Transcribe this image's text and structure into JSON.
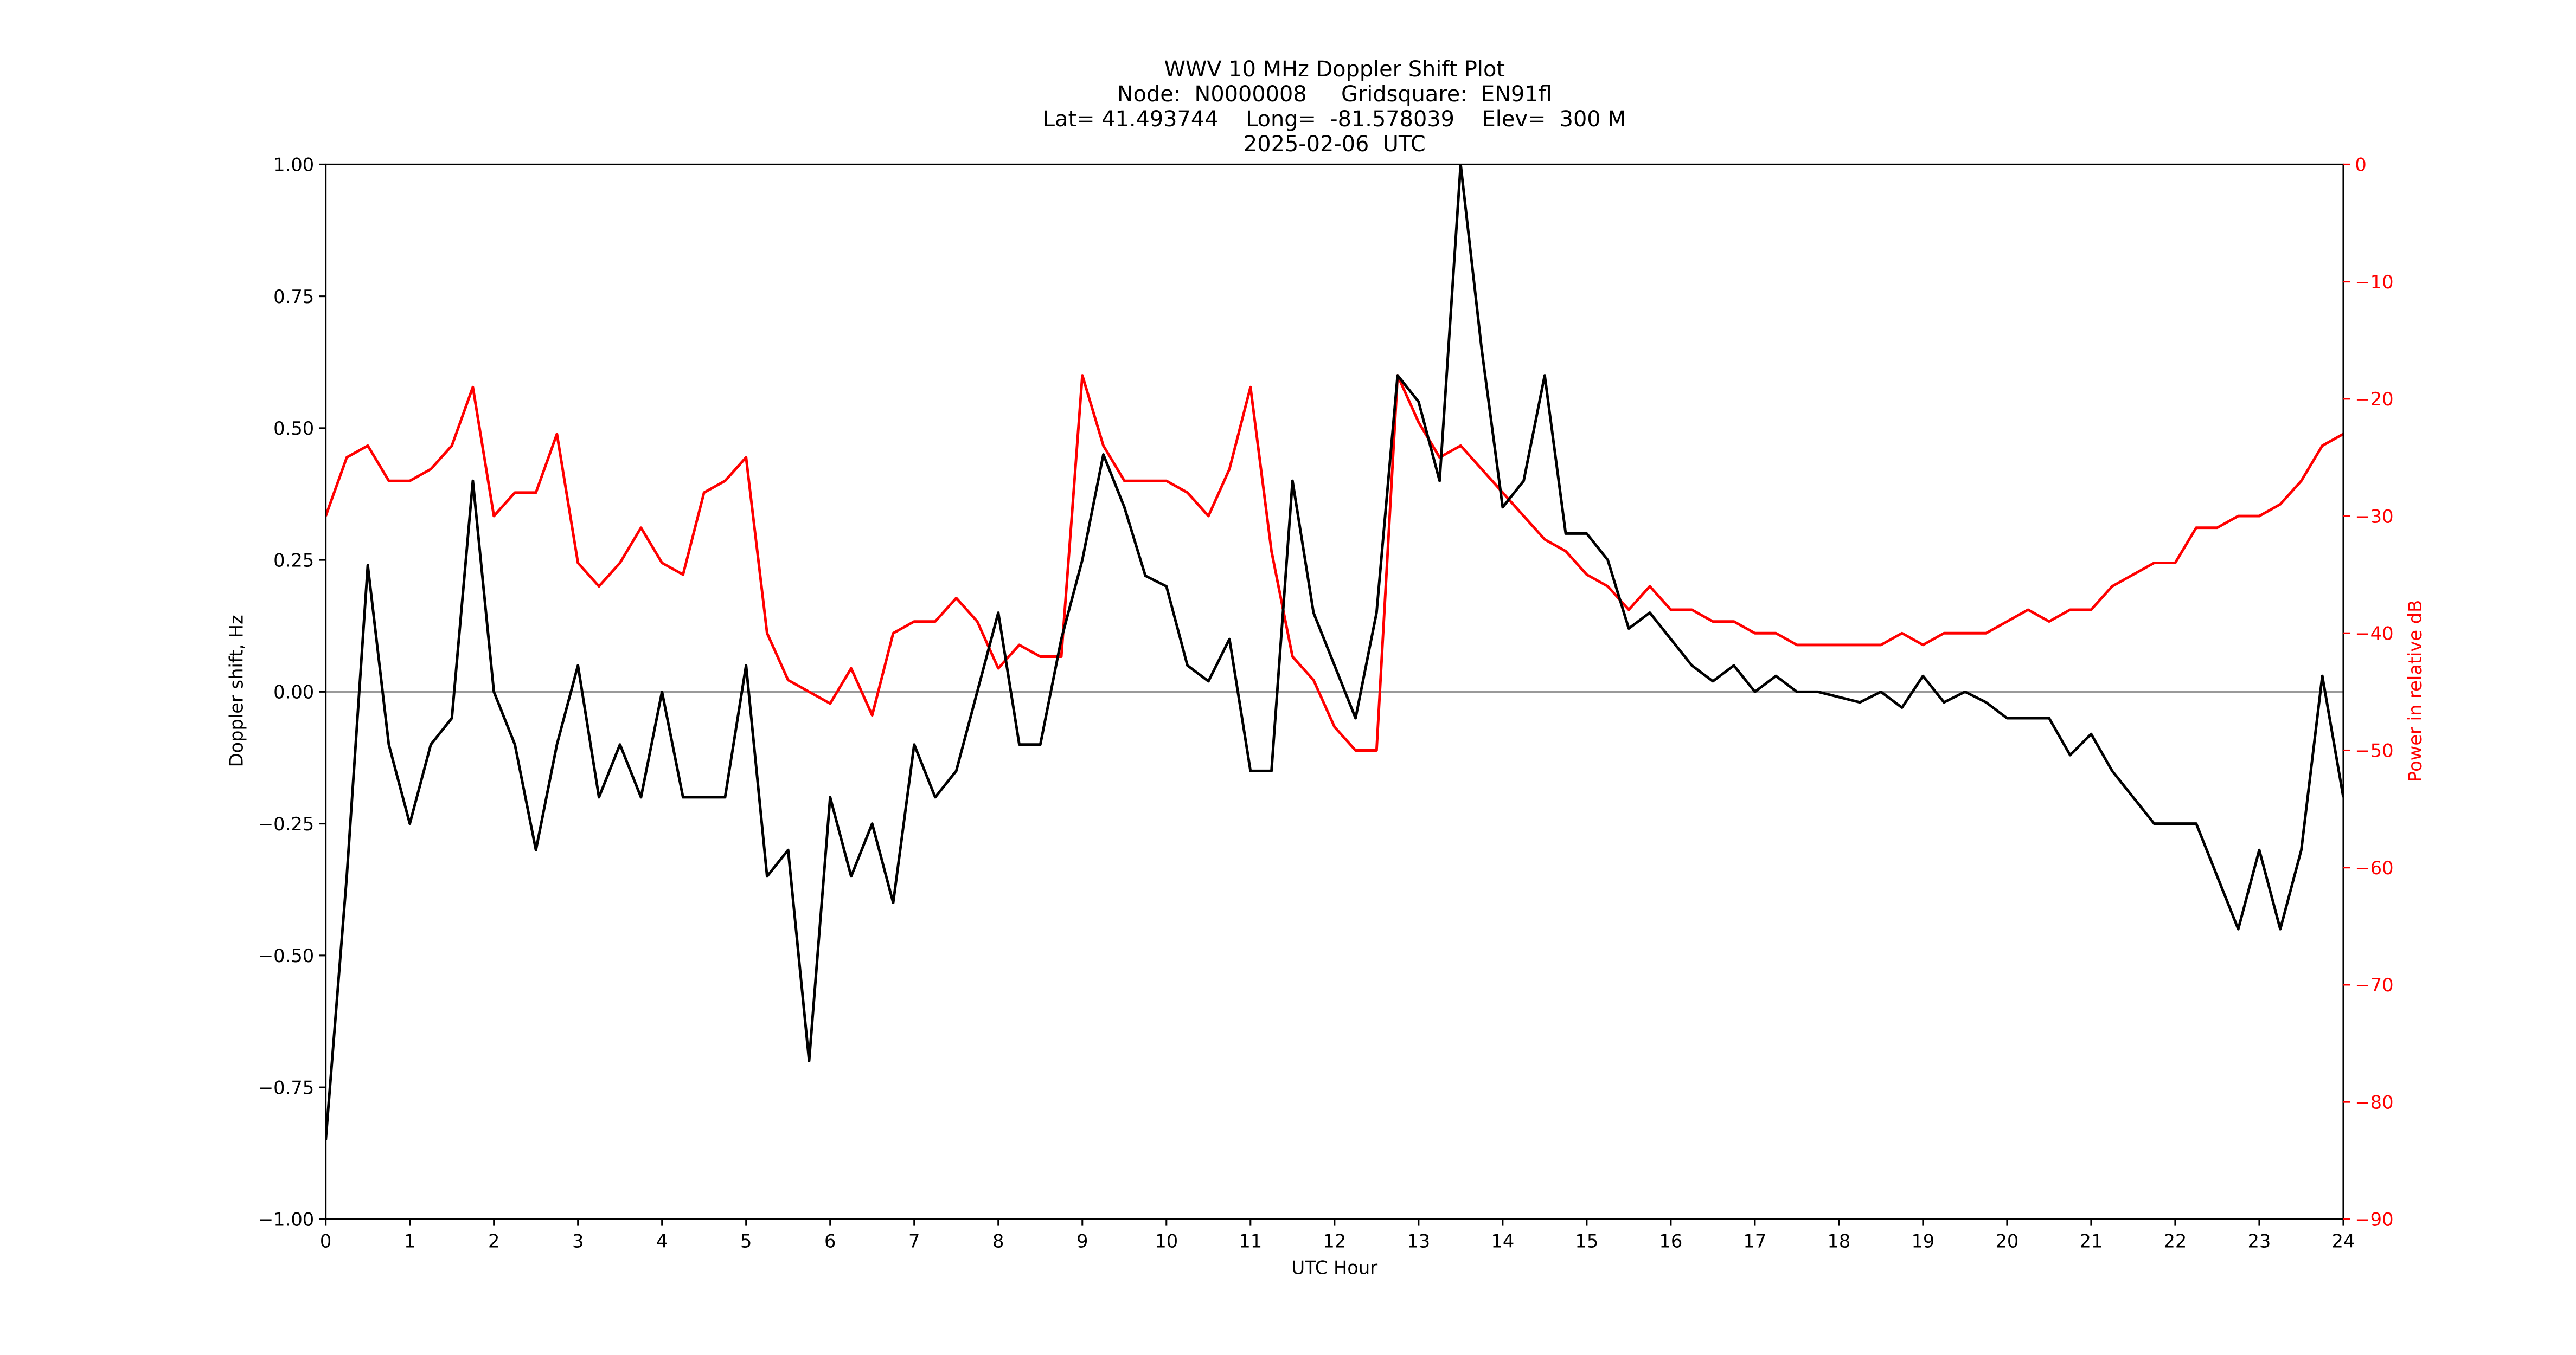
{
  "chart_data": {
    "type": "line",
    "title": "WWV 10 MHz Doppler Shift Plot",
    "subtitle": [
      "Node:  N0000008     Gridsquare:  EN91fl",
      "Lat= 41.493744    Long=  -81.578039    Elev=  300 M",
      "2025-02-06  UTC"
    ],
    "xlabel": "UTC Hour",
    "ylabel": "Doppler shift, Hz",
    "y2label": "Power in relative dB",
    "y2color": "#ff0000",
    "x": [
      0,
      0.25,
      0.5,
      0.75,
      1,
      1.25,
      1.5,
      1.75,
      2,
      2.25,
      2.5,
      2.75,
      3,
      3.25,
      3.5,
      3.75,
      4,
      4.25,
      4.5,
      4.75,
      5,
      5.25,
      5.5,
      5.75,
      6,
      6.25,
      6.5,
      6.75,
      7,
      7.25,
      7.5,
      7.75,
      8,
      8.25,
      8.5,
      8.75,
      9,
      9.25,
      9.5,
      9.75,
      10,
      10.25,
      10.5,
      10.75,
      11,
      11.25,
      11.5,
      11.75,
      12,
      12.25,
      12.5,
      12.75,
      13,
      13.25,
      13.5,
      13.75,
      14,
      14.25,
      14.5,
      14.75,
      15,
      15.25,
      15.5,
      15.75,
      16,
      16.25,
      16.5,
      16.75,
      17,
      17.25,
      17.5,
      17.75,
      18,
      18.25,
      18.5,
      18.75,
      19,
      19.25,
      19.5,
      19.75,
      20,
      20.25,
      20.5,
      20.75,
      21,
      21.25,
      21.5,
      21.75,
      22,
      22.25,
      22.5,
      22.75,
      23,
      23.25,
      23.5,
      23.75,
      24
    ],
    "series": [
      {
        "color": "#000000",
        "values": [
          -0.85,
          -0.35,
          0.24,
          -0.1,
          -0.25,
          -0.1,
          -0.05,
          0.4,
          0.0,
          -0.1,
          -0.3,
          -0.1,
          0.05,
          -0.2,
          -0.1,
          -0.2,
          0.0,
          -0.2,
          -0.2,
          -0.2,
          0.05,
          -0.35,
          -0.3,
          -0.7,
          -0.2,
          -0.35,
          -0.25,
          -0.4,
          -0.1,
          -0.2,
          -0.15,
          0.0,
          0.15,
          -0.1,
          -0.1,
          0.1,
          0.25,
          0.45,
          0.35,
          0.22,
          0.2,
          0.05,
          0.02,
          0.1,
          -0.15,
          -0.15,
          0.4,
          0.15,
          0.05,
          -0.05,
          0.15,
          0.6,
          0.55,
          0.4,
          1.0,
          0.65,
          0.35,
          0.4,
          0.6,
          0.3,
          0.3,
          0.25,
          0.12,
          0.15,
          0.1,
          0.05,
          0.02,
          0.05,
          0.0,
          0.03,
          0.0,
          0.0,
          -0.01,
          -0.02,
          0.0,
          -0.03,
          0.03,
          -0.02,
          0.0,
          -0.02,
          -0.05,
          -0.05,
          -0.05,
          -0.12,
          -0.08,
          -0.15,
          -0.2,
          -0.25,
          -0.25,
          -0.25,
          -0.35,
          -0.45,
          -0.3,
          -0.45,
          -0.3,
          0.03,
          -0.2
        ]
      },
      {
        "color": "#ff0000",
        "axis": "y2",
        "values": [
          -30,
          -25,
          -24,
          -27,
          -27,
          -26,
          -24,
          -19,
          -30,
          -28,
          -28,
          -23,
          -34,
          -36,
          -34,
          -31,
          -34,
          -35,
          -28,
          -27,
          -25,
          -40,
          -44,
          -45,
          -46,
          -43,
          -47,
          -40,
          -39,
          -39,
          -37,
          -39,
          -43,
          -41,
          -42,
          -42,
          -18,
          -24,
          -27,
          -27,
          -27,
          -28,
          -30,
          -26,
          -19,
          -33,
          -42,
          -44,
          -48,
          -50,
          -50,
          -18,
          -22,
          -25,
          -24,
          -26,
          -28,
          -30,
          -32,
          -33,
          -35,
          -36,
          -38,
          -36,
          -38,
          -38,
          -39,
          -39,
          -40,
          -40,
          -41,
          -41,
          -41,
          -41,
          -41,
          -40,
          -41,
          -40,
          -40,
          -40,
          -39,
          -38,
          -39,
          -38,
          -38,
          -36,
          -35,
          -34,
          -34,
          -31,
          -31,
          -30,
          -30,
          -29,
          -27,
          -24,
          -23
        ]
      }
    ],
    "xlim": [
      0,
      24
    ],
    "xticks": [
      0,
      1,
      2,
      3,
      4,
      5,
      6,
      7,
      8,
      9,
      10,
      11,
      12,
      13,
      14,
      15,
      16,
      17,
      18,
      19,
      20,
      21,
      22,
      23,
      24
    ],
    "ylim": [
      -1,
      1
    ],
    "yticks": [
      {
        "value": -1,
        "label": "−1.00"
      },
      {
        "value": -0.75,
        "label": "−0.75"
      },
      {
        "value": -0.5,
        "label": "−0.50"
      },
      {
        "value": -0.25,
        "label": "−0.25"
      },
      {
        "value": 0,
        "label": "0.00"
      },
      {
        "value": 0.25,
        "label": "0.25"
      },
      {
        "value": 0.5,
        "label": "0.50"
      },
      {
        "value": 0.75,
        "label": "0.75"
      },
      {
        "value": 1,
        "label": "1.00"
      }
    ],
    "y2lim": [
      -90,
      0
    ],
    "y2ticks": [
      {
        "value": -90,
        "label": "−90"
      },
      {
        "value": -80,
        "label": "−80"
      },
      {
        "value": -70,
        "label": "−70"
      },
      {
        "value": -60,
        "label": "−60"
      },
      {
        "value": -50,
        "label": "−50"
      },
      {
        "value": -40,
        "label": "−40"
      },
      {
        "value": -30,
        "label": "−30"
      },
      {
        "value": -20,
        "label": "−20"
      },
      {
        "value": -10,
        "label": "−10"
      },
      0
    ],
    "hlines": [
      0
    ]
  }
}
